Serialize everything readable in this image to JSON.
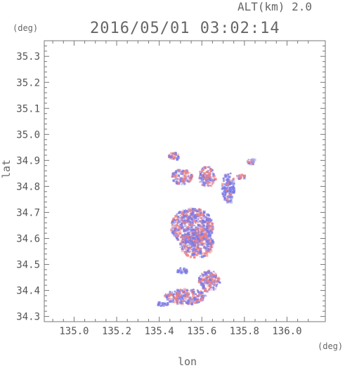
{
  "header": {
    "altitude_label": "ALT(km) 2.0",
    "timestamp": "2016/05/01 03:02:14"
  },
  "axes": {
    "y_unit": "(deg)",
    "x_unit": "(deg)",
    "y_label": "lat",
    "x_label": "lon"
  },
  "colors": {
    "positive": "#f08080",
    "negative": "#7a7ae8",
    "frame": "#777777"
  },
  "chart_data": {
    "type": "heatmap",
    "xlabel": "lon",
    "ylabel": "lat",
    "xlim": [
      134.86,
      136.18
    ],
    "ylim": [
      34.28,
      35.36
    ],
    "x_ticks": [
      "135.0",
      "135.2",
      "135.4",
      "135.6",
      "135.8",
      "136.0"
    ],
    "y_ticks": [
      "34.3",
      "34.4",
      "34.5",
      "34.6",
      "34.7",
      "34.8",
      "34.9",
      "35.0",
      "35.1",
      "35.2",
      "35.3"
    ],
    "clusters": [
      {
        "lon": 135.47,
        "lat": 34.92,
        "r_lon": 0.03,
        "r_lat": 0.015,
        "sign": "mixed"
      },
      {
        "lon": 135.5,
        "lat": 34.84,
        "r_lon": 0.05,
        "r_lat": 0.03,
        "sign": "mixed"
      },
      {
        "lon": 135.62,
        "lat": 34.84,
        "r_lon": 0.04,
        "r_lat": 0.04,
        "sign": "mixed"
      },
      {
        "lon": 135.72,
        "lat": 34.8,
        "r_lon": 0.03,
        "r_lat": 0.06,
        "sign": "negative"
      },
      {
        "lon": 135.83,
        "lat": 34.9,
        "r_lon": 0.02,
        "r_lat": 0.01,
        "sign": "negative"
      },
      {
        "lon": 135.78,
        "lat": 34.84,
        "r_lon": 0.02,
        "r_lat": 0.01,
        "sign": "mixed"
      },
      {
        "lon": 135.55,
        "lat": 34.65,
        "r_lon": 0.1,
        "r_lat": 0.07,
        "sign": "mixed"
      },
      {
        "lon": 135.57,
        "lat": 34.58,
        "r_lon": 0.08,
        "r_lat": 0.05,
        "sign": "mixed"
      },
      {
        "lon": 135.5,
        "lat": 34.48,
        "r_lon": 0.03,
        "r_lat": 0.01,
        "sign": "negative"
      },
      {
        "lon": 135.63,
        "lat": 34.44,
        "r_lon": 0.05,
        "r_lat": 0.04,
        "sign": "mixed"
      },
      {
        "lon": 135.52,
        "lat": 34.38,
        "r_lon": 0.1,
        "r_lat": 0.03,
        "sign": "mixed"
      },
      {
        "lon": 135.41,
        "lat": 34.35,
        "r_lon": 0.03,
        "r_lat": 0.01,
        "sign": "negative"
      }
    ],
    "grid": false
  }
}
